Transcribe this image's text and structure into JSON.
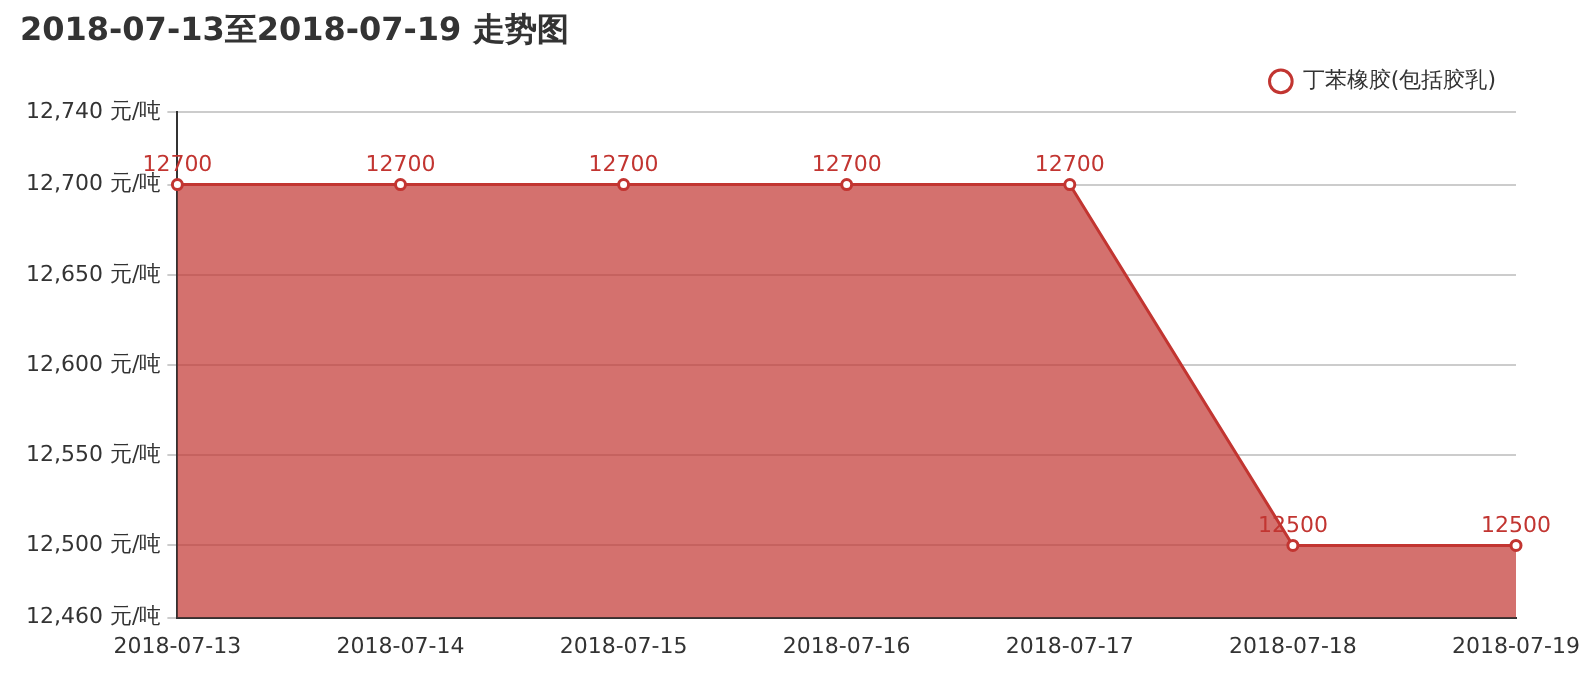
{
  "chart_data": {
    "type": "area",
    "title": "2018-07-13至2018-07-19 走势图",
    "categories": [
      "2018-07-13",
      "2018-07-14",
      "2018-07-15",
      "2018-07-16",
      "2018-07-17",
      "2018-07-18",
      "2018-07-19"
    ],
    "series": [
      {
        "name": "丁苯橡胶(包括胶乳)",
        "color": "#c23531",
        "values": [
          12700,
          12700,
          12700,
          12700,
          12700,
          12500,
          12500
        ]
      }
    ],
    "ylim": [
      12460,
      12740
    ],
    "yticks": [
      {
        "value": 12460,
        "label": "12,460 元/吨"
      },
      {
        "value": 12500,
        "label": "12,500 元/吨"
      },
      {
        "value": 12550,
        "label": "12,550 元/吨"
      },
      {
        "value": 12600,
        "label": "12,600 元/吨"
      },
      {
        "value": 12650,
        "label": "12,650 元/吨"
      },
      {
        "value": 12700,
        "label": "12,700 元/吨"
      },
      {
        "value": 12740,
        "label": "12,740 元/吨"
      }
    ],
    "grid": "y",
    "legend": "top right",
    "marker": "circle",
    "data_labels": true
  }
}
